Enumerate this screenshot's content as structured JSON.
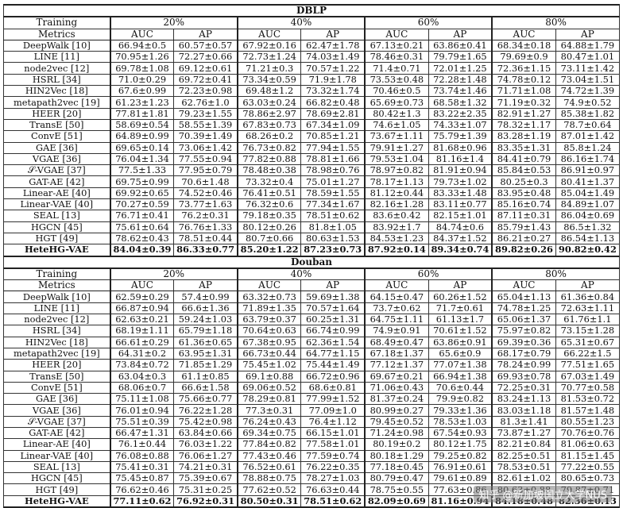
{
  "sections": [
    {
      "title": "DBLP",
      "training_label": "Training",
      "metrics_label": "Metrics",
      "ratios": [
        "20%",
        "40%",
        "60%",
        "80%"
      ],
      "metrics": [
        "AUC",
        "AP",
        "AUC",
        "AP",
        "AUC",
        "AP",
        "AUC",
        "AP"
      ],
      "rows": [
        {
          "method": "DeepWalk [10]",
          "values": [
            "66.94±0.5",
            "60.57±0.57",
            "67.92±0.16",
            "62.47±1.78",
            "67.13±0.21",
            "63.86±0.41",
            "68.34±0.18",
            "64.88±1.79"
          ]
        },
        {
          "method": "LINE [11]",
          "values": [
            "70.95±1.26",
            "72.27±0.66",
            "72.73±1.24",
            "74.03±1.49",
            "78.46±0.31",
            "79.79±1.65",
            "79.69±0.9",
            "80.47±1.01"
          ]
        },
        {
          "method": "node2vec [12]",
          "values": [
            "69.78±1.08",
            "69.12±0.61",
            "71.21±0.3",
            "70.57±1.22",
            "71.4±0.71",
            "72.01±1.25",
            "72.36±1.15",
            "73.11±1.42"
          ]
        },
        {
          "method": "HSRL [34]",
          "values": [
            "71.0±0.29",
            "69.72±0.41",
            "73.34±0.59",
            "71.9±1.78",
            "73.53±0.48",
            "72.28±1.48",
            "74.78±0.12",
            "73.04±1.51"
          ]
        },
        {
          "method": "HIN2Vec [18]",
          "values": [
            "67.6±0.99",
            "72.23±0.98",
            "69.48±1.2",
            "73.32±1.74",
            "70.46±0.5",
            "73.74±1.46",
            "71.71±1.08",
            "74.72±1.39"
          ]
        },
        {
          "method": "metapath2vec [19]",
          "values": [
            "61.23±1.23",
            "62.76±1.0",
            "63.03±0.24",
            "66.82±0.48",
            "65.69±0.73",
            "68.58±1.32",
            "71.19±0.32",
            "74.9±0.52"
          ]
        },
        {
          "method": "HEER [20]",
          "values": [
            "77.81±1.81",
            "79.23±1.55",
            "78.86±2.97",
            "78.69±2.81",
            "80.42±1.3",
            "83.22±2.35",
            "82.91±1.27",
            "85.38±1.82"
          ]
        },
        {
          "method": "TransE [50]",
          "values": [
            "58.69±0.54",
            "58.55±1.39",
            "67.83±0.73",
            "67.34±1.09",
            "74.6±1.05",
            "74.33±1.07",
            "78.32±1.17",
            "78.7±0.64"
          ]
        },
        {
          "method": "ConvE [51]",
          "values": [
            "64.89±0.99",
            "70.39±1.49",
            "68.26±0.2",
            "70.85±1.21",
            "73.67±1.11",
            "75.79±1.39",
            "83.28±1.19",
            "87.01±1.42"
          ]
        },
        {
          "method": "GAE [36]",
          "values": [
            "69.65±0.14",
            "73.06±1.42",
            "76.73±0.82",
            "77.94±1.55",
            "79.91±1.27",
            "81.68±0.96",
            "83.35±1.31",
            "85.8±1.24"
          ]
        },
        {
          "method": "VGAE [36]",
          "values": [
            "76.04±1.34",
            "77.55±0.94",
            "77.82±0.88",
            "78.81±1.66",
            "79.53±1.04",
            "81.16±1.4",
            "84.41±0.79",
            "86.16±1.74"
          ]
        },
        {
          "method": "𝒮-VGAE [37]",
          "values": [
            "77.5±1.33",
            "77.95±0.79",
            "78.48±0.38",
            "78.98±0.76",
            "78.97±0.82",
            "81.91±0.94",
            "85.84±0.53",
            "86.91±0.97"
          ]
        },
        {
          "method": "GAT-AE [42]",
          "values": [
            "69.75±0.99",
            "70.6±1.48",
            "73.32±0.4",
            "75.01±1.27",
            "78.17±1.13",
            "79.73±1.02",
            "80.25±0.3",
            "80.41±1.37"
          ]
        },
        {
          "method": "Linear-AE [40]",
          "values": [
            "69.92±0.65",
            "74.52±0.46",
            "76.41±0.51",
            "78.59±1.55",
            "81.12±0.44",
            "83.33±1.48",
            "83.95±0.48",
            "85.04±1.49"
          ]
        },
        {
          "method": "Linear-VAE [40]",
          "values": [
            "70.27±0.59",
            "73.77±1.63",
            "76.32±0.6",
            "77.34±1.67",
            "82.16±1.28",
            "83.11±0.77",
            "85.16±0.74",
            "84.89±1.07"
          ]
        },
        {
          "method": "SEAL [13]",
          "values": [
            "76.71±0.41",
            "76.2±0.31",
            "79.18±0.35",
            "78.51±0.62",
            "83.6±0.42",
            "82.15±1.01",
            "87.11±0.31",
            "86.04±0.69"
          ]
        },
        {
          "method": "HGCN [45]",
          "values": [
            "75.61±0.64",
            "76.76±1.33",
            "80.12±0.26",
            "81.8±1.05",
            "83.92±1.7",
            "84.74±0.6",
            "85.79±1.43",
            "86.5±1.32"
          ]
        },
        {
          "method": "HGT [49]",
          "values": [
            "78.62±0.43",
            "78.51±0.44",
            "80.7±0.66",
            "80.63±1.53",
            "84.53±1.23",
            "84.37±1.52",
            "86.21±0.27",
            "86.54±1.13"
          ]
        },
        {
          "method": "HeteHG-VAE",
          "values": [
            "84.04±0.39",
            "86.33±0.77",
            "85.20±1.22",
            "87.23±0.73",
            "87.92±0.14",
            "89.34±0.74",
            "89.82±0.26",
            "90.82±0.42"
          ]
        }
      ]
    },
    {
      "title": "Douban",
      "training_label": "Training",
      "metrics_label": "Metrics",
      "ratios": [
        "20%",
        "40%",
        "60%",
        "80%"
      ],
      "metrics": [
        "AUC",
        "AP",
        "AUC",
        "AP",
        "AUC",
        "AP",
        "AUC",
        "AP"
      ],
      "rows": [
        {
          "method": "DeepWalk [10]",
          "values": [
            "62.59±0.29",
            "57.4±0.99",
            "63.32±0.73",
            "59.69±1.38",
            "64.15±0.47",
            "60.26±1.52",
            "65.04±1.13",
            "61.36±0.84"
          ]
        },
        {
          "method": "LINE [11]",
          "values": [
            "66.87±0.94",
            "66.6±1.36",
            "71.89±1.35",
            "70.57±1.64",
            "73.7±0.62",
            "71.7±0.61",
            "74.78±1.25",
            "72.63±1.11"
          ]
        },
        {
          "method": "node2vec [12]",
          "values": [
            "62.63±0.21",
            "59.24±1.03",
            "63.79±0.37",
            "60.25±1.31",
            "64.75±1.11",
            "61.13±1.7",
            "65.06±1.37",
            "61.76±1.1"
          ]
        },
        {
          "method": "HSRL [34]",
          "values": [
            "68.19±1.11",
            "65.79±1.18",
            "70.64±0.63",
            "66.74±0.99",
            "74.9±0.91",
            "70.61±1.52",
            "75.97±0.82",
            "73.15±1.28"
          ]
        },
        {
          "method": "HIN2Vec [18]",
          "values": [
            "66.61±0.29",
            "61.36±0.65",
            "67.38±0.95",
            "62.36±1.54",
            "68.49±0.47",
            "63.86±0.91",
            "69.39±0.36",
            "65.31±0.67"
          ]
        },
        {
          "method": "metapath2vec [19]",
          "values": [
            "64.31±0.2",
            "63.95±1.31",
            "66.73±0.44",
            "64.77±1.15",
            "67.18±1.37",
            "65.6±0.9",
            "68.17±0.79",
            "66.22±1.5"
          ]
        },
        {
          "method": "HEER [20]",
          "values": [
            "73.84±0.72",
            "71.85±1.29",
            "75.45±1.02",
            "75.44±1.49",
            "77.12±1.37",
            "77.07±1.38",
            "78.24±0.99",
            "77.51±1.65"
          ]
        },
        {
          "method": "TransE [50]",
          "values": [
            "63.04±0.3",
            "61.1±0.85",
            "69.1±0.88",
            "66.72±0.96",
            "69.67±0.21",
            "66.94±1.38",
            "69.93±0.78",
            "67.03±1.49"
          ]
        },
        {
          "method": "ConvE [51]",
          "values": [
            "68.06±0.7",
            "66.6±1.58",
            "69.06±0.52",
            "68.6±0.81",
            "71.06±0.43",
            "70.6±0.44",
            "72.25±0.31",
            "70.77±0.58"
          ]
        },
        {
          "method": "GAE [36]",
          "values": [
            "75.11±1.08",
            "75.66±0.77",
            "78.29±0.81",
            "77.99±1.52",
            "81.37±0.24",
            "79.9±0.82",
            "83.24±1.13",
            "81.53±0.72"
          ]
        },
        {
          "method": "VGAE [36]",
          "values": [
            "76.01±0.94",
            "76.22±1.28",
            "77.3±0.31",
            "77.09±1.0",
            "80.99±0.27",
            "79.33±1.36",
            "83.03±1.18",
            "81.57±1.48"
          ]
        },
        {
          "method": "𝒮-VGAE [37]",
          "values": [
            "75.51±0.39",
            "75.42±0.98",
            "76.24±0.43",
            "76.4±1.12",
            "79.45±0.52",
            "78.53±1.03",
            "81.3±1.41",
            "80.55±1.23"
          ]
        },
        {
          "method": "GAT-AE [42]",
          "values": [
            "66.47±1.31",
            "63.84±0.66",
            "69.34±0.75",
            "66.15±1.01",
            "71.24±0.98",
            "67.54±0.93",
            "73.87±1.27",
            "70.76±0.76"
          ]
        },
        {
          "method": "Linear-AE [40]",
          "values": [
            "76.1±0.44",
            "76.03±1.22",
            "77.84±0.82",
            "77.58±1.01",
            "80.19±0.2",
            "80.12±1.75",
            "82.21±0.84",
            "81.06±0.63"
          ]
        },
        {
          "method": "Linear-VAE [40]",
          "values": [
            "76.08±0.88",
            "76.06±1.27",
            "77.43±0.46",
            "77.59±0.74",
            "80.18±1.29",
            "79.25±0.82",
            "82.25±0.51",
            "81.15±1.45"
          ]
        },
        {
          "method": "SEAL [13]",
          "values": [
            "75.41±0.31",
            "74.21±0.31",
            "76.52±0.61",
            "76.22±0.35",
            "77.18±0.45",
            "76.91±0.61",
            "78.53±0.51",
            "77.22±0.55"
          ]
        },
        {
          "method": "HGCN [45]",
          "values": [
            "75.45±0.87",
            "75.39±0.67",
            "78.88±0.75",
            "78.27±1.03",
            "80.79±0.47",
            "79.61±0.89",
            "82.61±1.02",
            "80.65±0.73"
          ]
        },
        {
          "method": "HGT [49]",
          "values": [
            "76.62±0.46",
            "75.31±0.25",
            "77.62±0.52",
            "76.63±0.44",
            "78.75±0.55",
            "77.63±0.86",
            "80.63±0.88",
            "79.87±0.71"
          ]
        },
        {
          "method": "HeteHG-VAE",
          "values": [
            "77.11±0.62",
            "76.92±0.31",
            "80.50±0.31",
            "78.51±0.62",
            "82.09±0.69",
            "81.16±0.94",
            "84.18±0.48",
            "82.36±0.13"
          ]
        }
      ]
    }
  ],
  "watermark": "知乎 @新加坡国立大学NUS"
}
